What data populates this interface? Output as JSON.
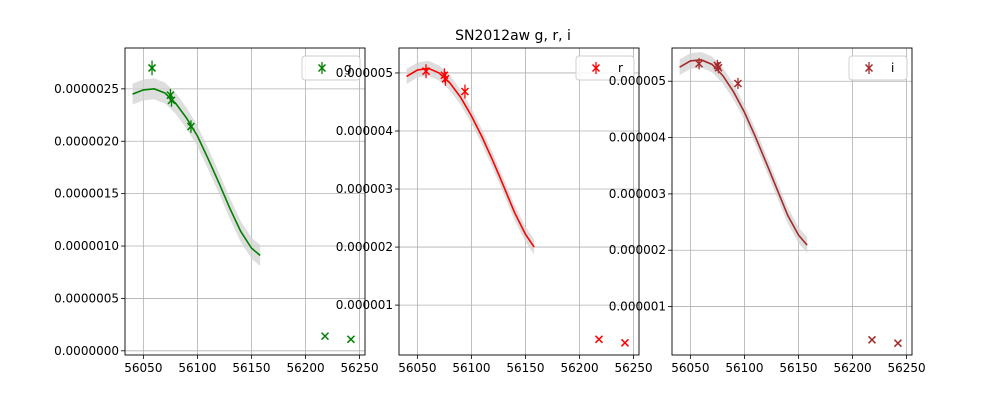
{
  "figure_title": "SN2012aw  g, r, i",
  "chart_data": [
    {
      "type": "scatter",
      "band": "g",
      "color": "#008000",
      "xlim": [
        56033,
        56255
      ],
      "ylim": [
        -4e-08,
        2.89e-06
      ],
      "xticks": [
        56050,
        56100,
        56150,
        56200,
        56250
      ],
      "xtick_labels": [
        "56050",
        "56100",
        "56150",
        "56200",
        "56250"
      ],
      "yticks": [
        0,
        5e-07,
        1e-06,
        1.5e-06,
        2e-06,
        2.5e-06
      ],
      "ytick_labels": [
        "0.0000000",
        "0.0000005",
        "0.0000010",
        "0.0000015",
        "0.0000020",
        "0.0000025"
      ],
      "grid": true,
      "legend": {
        "label": "g",
        "placement": "top-right"
      },
      "points": [
        {
          "x": 56058,
          "y": 2.7e-06,
          "err": 7e-08
        },
        {
          "x": 56075,
          "y": 2.44e-06,
          "err": 6e-08
        },
        {
          "x": 56076,
          "y": 2.39e-06,
          "err": 6e-08
        },
        {
          "x": 56094,
          "y": 2.14e-06,
          "err": 6e-08
        }
      ],
      "outliers": [
        {
          "x": 56218,
          "y": 1.4e-07
        },
        {
          "x": 56242,
          "y": 1.1e-07
        }
      ],
      "fit": {
        "x": [
          56040,
          56050,
          56060,
          56070,
          56080,
          56090,
          56100,
          56110,
          56120,
          56130,
          56140,
          56150,
          56158
        ],
        "y": [
          2.45e-06,
          2.49e-06,
          2.5e-06,
          2.46e-06,
          2.36e-06,
          2.22e-06,
          2.05e-06,
          1.83e-06,
          1.6e-06,
          1.36e-06,
          1.14e-06,
          9.8e-07,
          9.1e-07
        ],
        "band_half_width": 1e-07
      }
    },
    {
      "type": "scatter",
      "band": "r",
      "color": "#ff0000",
      "xlim": [
        56033,
        56255
      ],
      "ylim": [
        1.4e-07,
        5.43e-06
      ],
      "xticks": [
        56050,
        56100,
        56150,
        56200,
        56250
      ],
      "xtick_labels": [
        "56050",
        "56100",
        "56150",
        "56200",
        "56250"
      ],
      "yticks": [
        1e-06,
        2e-06,
        3e-06,
        4e-06,
        5e-06
      ],
      "ytick_labels": [
        "0.000001",
        "0.000002",
        "0.000003",
        "0.000004",
        "0.000005"
      ],
      "grid": true,
      "legend": {
        "label": "r",
        "placement": "top-right"
      },
      "points": [
        {
          "x": 56058,
          "y": 5.03e-06,
          "err": 1.2e-07
        },
        {
          "x": 56075,
          "y": 4.96e-06,
          "err": 1.2e-07
        },
        {
          "x": 56076,
          "y": 4.9e-06,
          "err": 1.2e-07
        },
        {
          "x": 56094,
          "y": 4.68e-06,
          "err": 1.2e-07
        }
      ],
      "outliers": [
        {
          "x": 56218,
          "y": 4.1e-07
        },
        {
          "x": 56242,
          "y": 3.5e-07
        }
      ],
      "fit": {
        "x": [
          56040,
          56050,
          56060,
          56070,
          56080,
          56090,
          56100,
          56110,
          56120,
          56130,
          56140,
          56150,
          56158
        ],
        "y": [
          4.94e-06,
          5.05e-06,
          5.08e-06,
          5e-06,
          4.83e-06,
          4.58e-06,
          4.26e-06,
          3.89e-06,
          3.48e-06,
          3.04e-06,
          2.59e-06,
          2.22e-06,
          2e-06
        ],
        "band_half_width": 1.3e-07
      }
    },
    {
      "type": "scatter",
      "band": "i",
      "color": "#a52a2a",
      "xlim": [
        56033,
        56255
      ],
      "ylim": [
        1.4e-07,
        5.59e-06
      ],
      "xticks": [
        56050,
        56100,
        56150,
        56200,
        56250
      ],
      "xtick_labels": [
        "56050",
        "56100",
        "56150",
        "56200",
        "56250"
      ],
      "yticks": [
        1e-06,
        2e-06,
        3e-06,
        4e-06,
        5e-06
      ],
      "ytick_labels": [
        "0.000001",
        "0.000002",
        "0.000003",
        "0.000004",
        "0.000005"
      ],
      "grid": true,
      "legend": {
        "label": "i",
        "placement": "top-right"
      },
      "points": [
        {
          "x": 56058,
          "y": 5.31e-06,
          "err": 1e-07
        },
        {
          "x": 56075,
          "y": 5.28e-06,
          "err": 1e-07
        },
        {
          "x": 56076,
          "y": 5.24e-06,
          "err": 1e-07
        },
        {
          "x": 56094,
          "y": 4.96e-06,
          "err": 1e-07
        }
      ],
      "outliers": [
        {
          "x": 56218,
          "y": 4.1e-07
        },
        {
          "x": 56242,
          "y": 3.5e-07
        }
      ],
      "fit": {
        "x": [
          56040,
          56050,
          56060,
          56070,
          56080,
          56090,
          56100,
          56110,
          56120,
          56130,
          56140,
          56150,
          56158
        ],
        "y": [
          5.25e-06,
          5.36e-06,
          5.38e-06,
          5.3e-06,
          5.1e-06,
          4.81e-06,
          4.45e-06,
          4.02e-06,
          3.56e-06,
          3.09e-06,
          2.62e-06,
          2.27e-06,
          2.09e-06
        ],
        "band_half_width": 1.4e-07
      }
    }
  ]
}
